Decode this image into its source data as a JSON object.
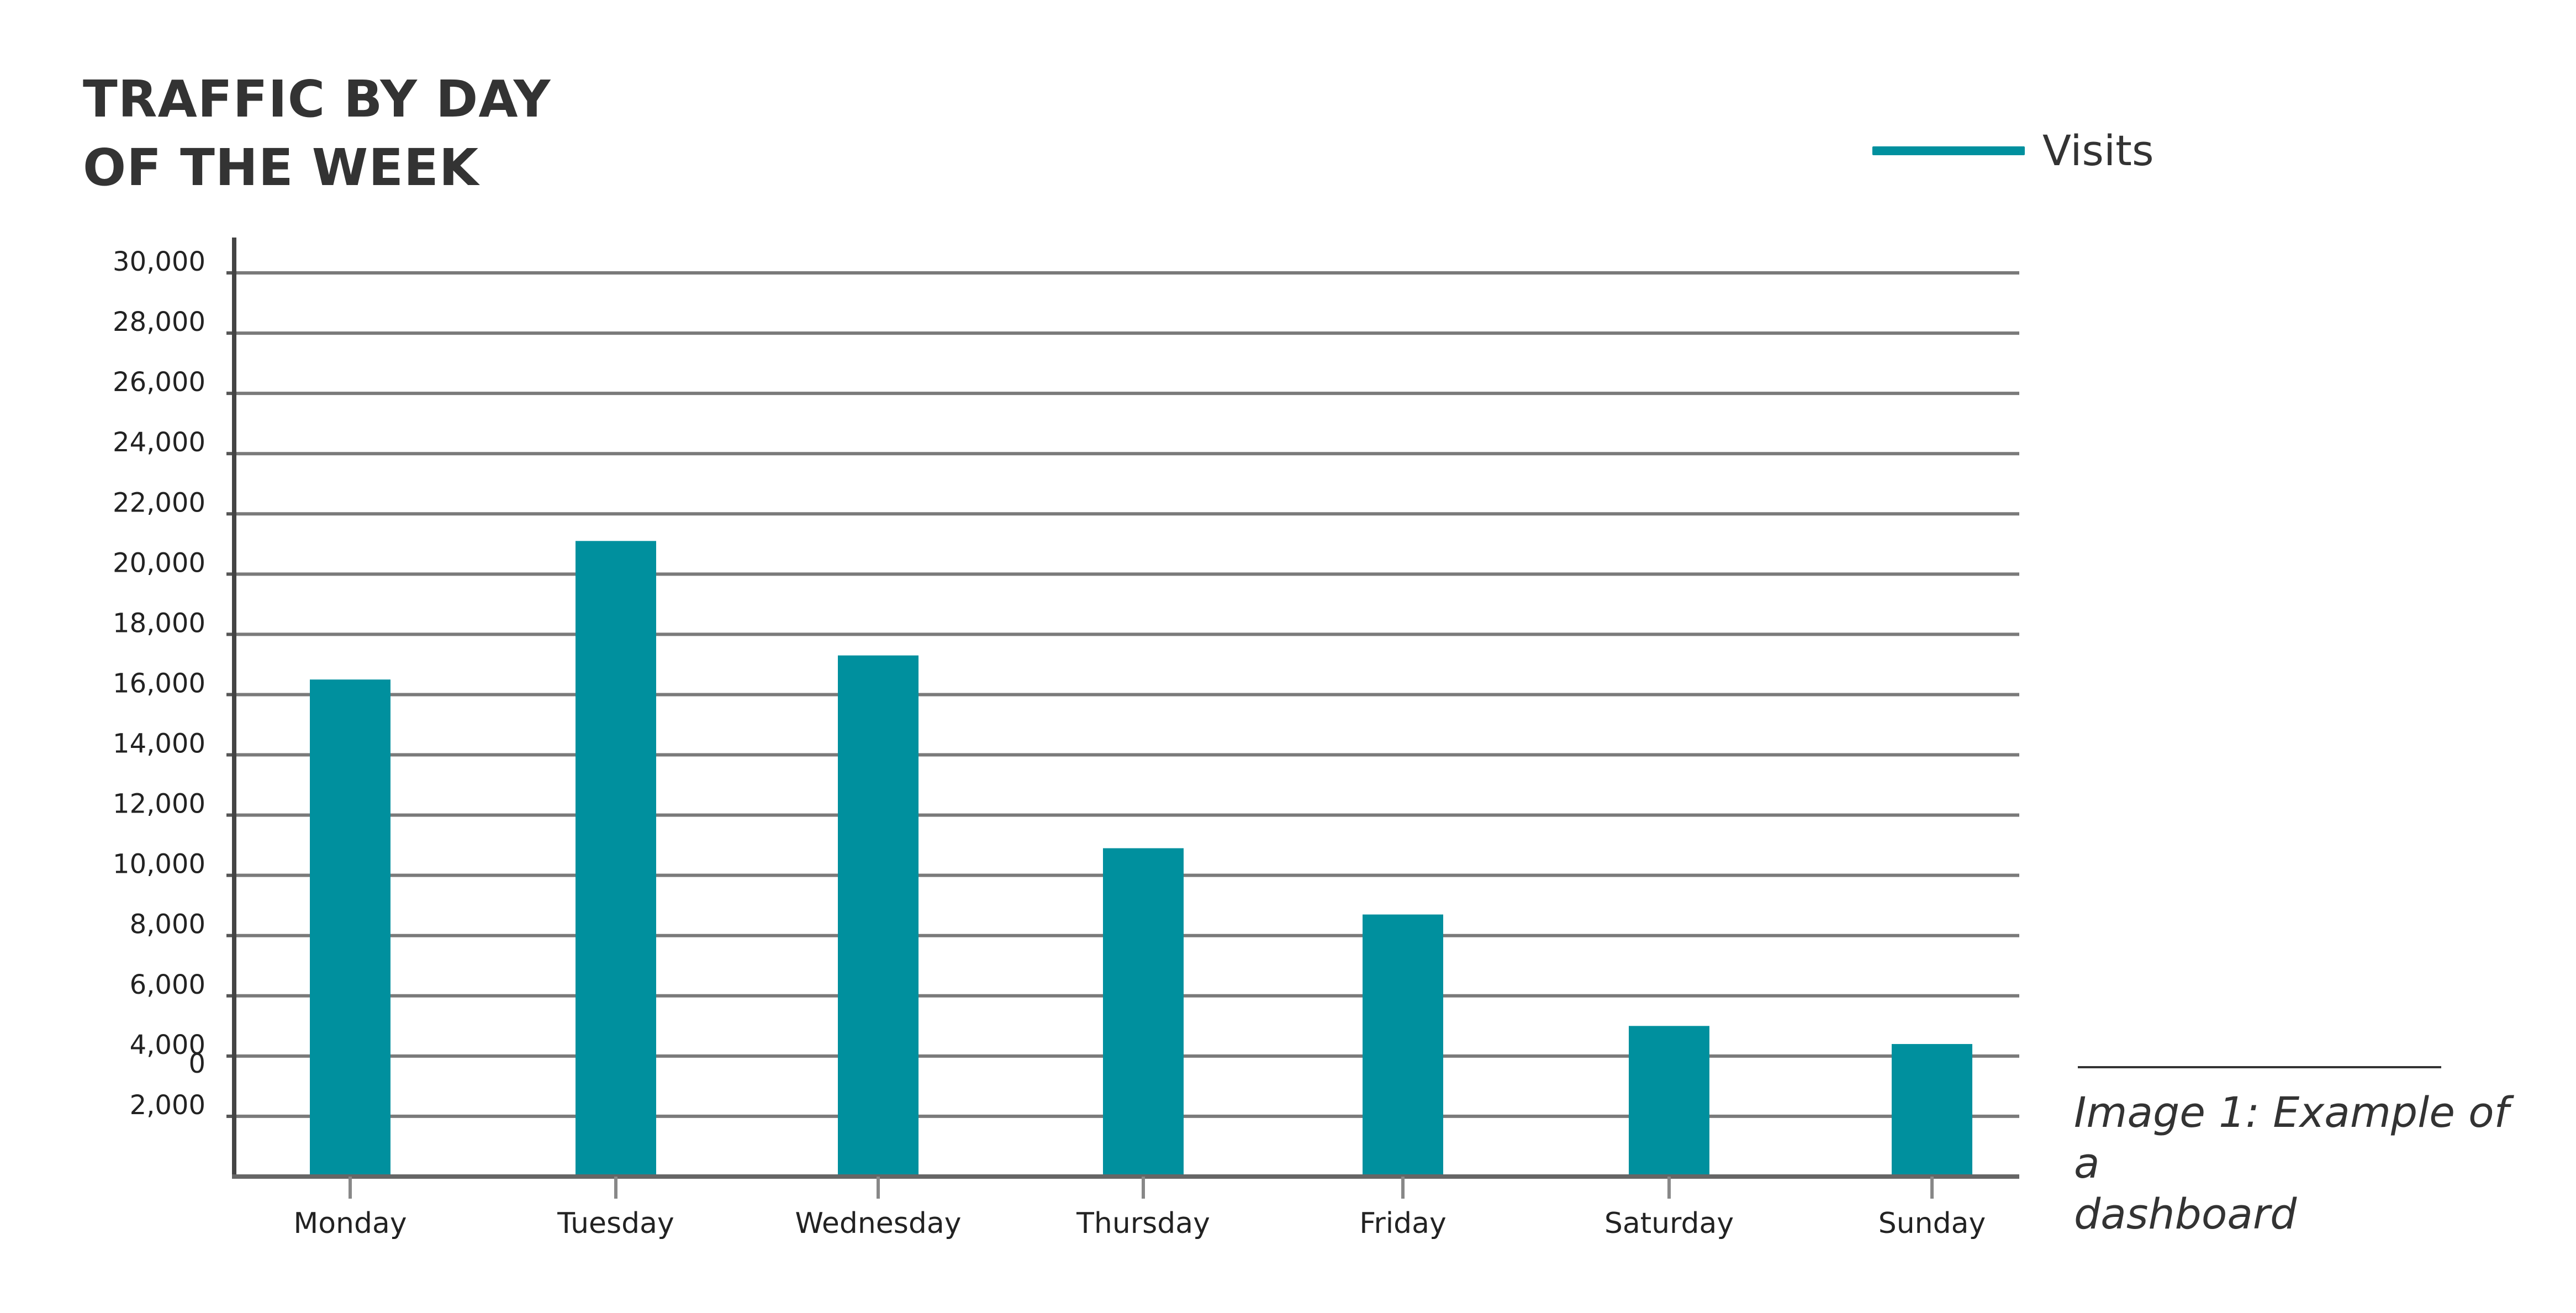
{
  "chart_data": {
    "type": "bar",
    "title_lines": [
      "TRAFFIC BY DAY",
      "OF THE WEEK"
    ],
    "categories": [
      "Monday",
      "Tuesday",
      "Wednesday",
      "Thursday",
      "Friday",
      "Saturday",
      "Sunday"
    ],
    "series": [
      {
        "name": "Visits",
        "values": [
          16500,
          21100,
          17300,
          10900,
          8700,
          5000,
          4400
        ],
        "color": "#00909e"
      }
    ],
    "y_ticks": [
      "30,000",
      "28,000",
      "26,000",
      "24,000",
      "22,000",
      "20,000",
      "18,000",
      "16,000",
      "14,000",
      "12,000",
      "10,000",
      "8,000",
      "6,000",
      "4,000",
      "2,000"
    ],
    "zero_label": "0",
    "ylim": [
      0,
      30000
    ],
    "grid": true,
    "legend_position": "top-right"
  },
  "caption": {
    "lines": [
      "Image 1: Example of a",
      "dashboard"
    ]
  }
}
